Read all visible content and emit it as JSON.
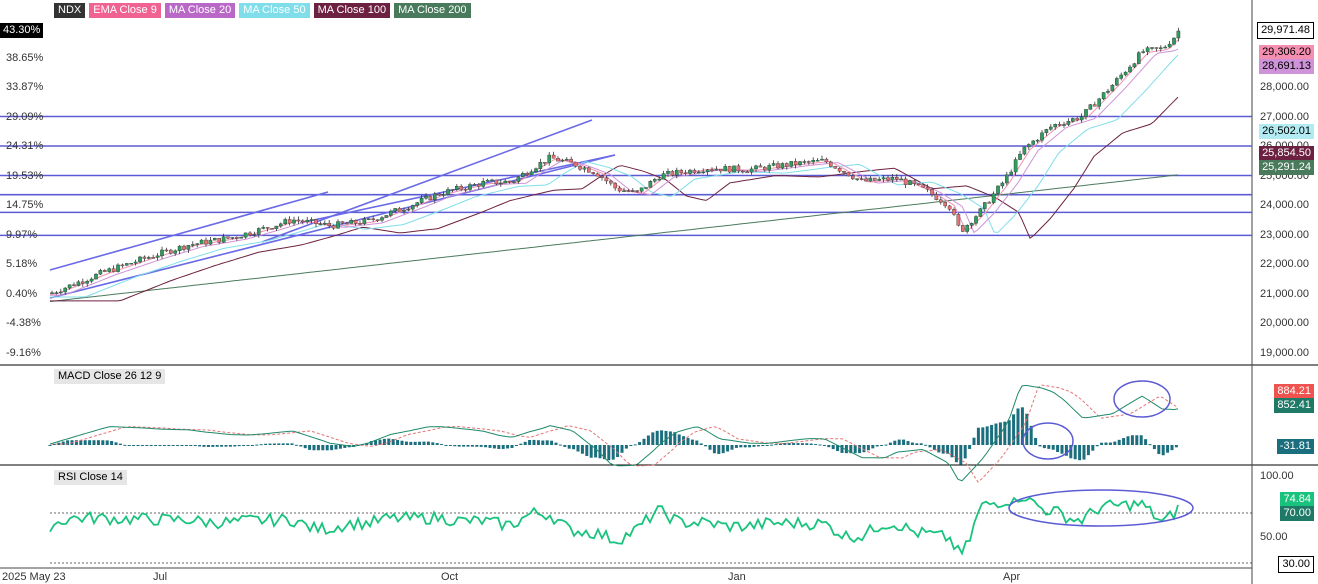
{
  "legend": [
    {
      "label": "NDX",
      "color": "#333333"
    },
    {
      "label": "EMA  Close 9",
      "color": "#f06292"
    },
    {
      "label": "MA  Close 20",
      "color": "#ba68c8"
    },
    {
      "label": "MA  Close 50",
      "color": "#80deea"
    },
    {
      "label": "MA  Close 100",
      "color": "#6d2140"
    },
    {
      "label": "MA  Close 200",
      "color": "#4a7a5c"
    }
  ],
  "colors": {
    "up": "#2e9e5e",
    "down": "#e57373",
    "hline": "#5b5bd6",
    "channel": "#6a6ae8",
    "rsi": "#19c37d",
    "macd": "#1e8a6a",
    "signal": "#e57373",
    "hist": "#1a6e7e"
  },
  "price_left_axis": [
    "43.30%",
    "38.65%",
    "33.87%",
    "29.09%",
    "24.31%",
    "19.53%",
    "14.75%",
    "9.97%",
    "5.18%",
    "0.40%",
    "-4.38%",
    "-9.16%"
  ],
  "price_right_axis": [
    "28,000.00",
    "27,000.00",
    "26,000.00",
    "25,000.00",
    "24,000.00",
    "23,000.00",
    "22,000.00",
    "21,000.00",
    "20,000.00",
    "19,000.00"
  ],
  "x_axis_labels": [
    "2025 May 23",
    "Jul",
    "Oct",
    "Jan",
    "Apr"
  ],
  "price_badges": [
    {
      "text": "29,971.48",
      "bg": "#ffffff",
      "fg": "#000000",
      "border": "#000000"
    },
    {
      "text": "29,306.20",
      "bg": "#f48fb1",
      "fg": "#000000"
    },
    {
      "text": "28,691.13",
      "bg": "#ce93d8",
      "fg": "#000000"
    },
    {
      "text": "26,502.01",
      "bg": "#b2ebf2",
      "fg": "#000000"
    },
    {
      "text": "25,854.50",
      "bg": "#6d2140",
      "fg": "#ffffff"
    },
    {
      "text": "25,291.24",
      "bg": "#4a7a5c",
      "fg": "#ffffff"
    }
  ],
  "left_badge": "43.30%",
  "macd": {
    "label": "MACD  Close 26 12 9",
    "badges": [
      {
        "text": "884.21",
        "bg": "#ef5350",
        "fg": "#ffffff"
      },
      {
        "text": "852.41",
        "bg": "#1e7a66",
        "fg": "#ffffff"
      },
      {
        "text": "-31.81",
        "bg": "#1a6e7e",
        "fg": "#ffffff"
      }
    ]
  },
  "rsi": {
    "label": "RSI  Close 14",
    "axis": [
      "100.00",
      "50.00"
    ],
    "badges": [
      {
        "text": "74.84",
        "bg": "#19c37d",
        "fg": "#ffffff"
      },
      {
        "text": "70.00",
        "bg": "#1e7a66",
        "fg": "#ffffff"
      },
      {
        "text": "30.00",
        "bg": "#ffffff",
        "fg": "#000000",
        "border": "#000000"
      }
    ]
  },
  "chart_data": {
    "type": "line",
    "title": "NDX",
    "ylim": [
      18600,
      30500
    ],
    "horizontal_levels": [
      27000,
      26000,
      25000,
      24350,
      23750,
      22970
    ],
    "x_dates": [
      "2025-05-23",
      "2025-07-01",
      "2025-10-01",
      "2026-01-01",
      "2026-04-01"
    ],
    "close_series": [
      {
        "date": "2025-05-23",
        "value": 21000
      },
      {
        "date": "2025-06-10",
        "value": 21700
      },
      {
        "date": "2025-06-25",
        "value": 22200
      },
      {
        "date": "2025-07-10",
        "value": 22650
      },
      {
        "date": "2025-07-25",
        "value": 22900
      },
      {
        "date": "2025-08-05",
        "value": 23200
      },
      {
        "date": "2025-08-15",
        "value": 23500
      },
      {
        "date": "2025-08-28",
        "value": 23300
      },
      {
        "date": "2025-09-10",
        "value": 23450
      },
      {
        "date": "2025-09-25",
        "value": 24000
      },
      {
        "date": "2025-10-05",
        "value": 24400
      },
      {
        "date": "2025-10-20",
        "value": 24750
      },
      {
        "date": "2025-10-30",
        "value": 24800
      },
      {
        "date": "2025-11-05",
        "value": 25200
      },
      {
        "date": "2025-11-12",
        "value": 25600
      },
      {
        "date": "2025-11-20",
        "value": 25400
      },
      {
        "date": "2025-11-28",
        "value": 25100
      },
      {
        "date": "2025-12-05",
        "value": 24550
      },
      {
        "date": "2025-12-12",
        "value": 24400
      },
      {
        "date": "2025-12-20",
        "value": 25000
      },
      {
        "date": "2026-01-05",
        "value": 25250
      },
      {
        "date": "2026-01-20",
        "value": 25200
      },
      {
        "date": "2026-02-05",
        "value": 25400
      },
      {
        "date": "2026-02-15",
        "value": 25500
      },
      {
        "date": "2026-02-28",
        "value": 24800
      },
      {
        "date": "2026-03-12",
        "value": 24900
      },
      {
        "date": "2026-03-22",
        "value": 24500
      },
      {
        "date": "2026-03-30",
        "value": 24000
      },
      {
        "date": "2026-04-03",
        "value": 23100
      },
      {
        "date": "2026-04-10",
        "value": 23800
      },
      {
        "date": "2026-04-18",
        "value": 24800
      },
      {
        "date": "2026-04-25",
        "value": 25900
      },
      {
        "date": "2026-05-05",
        "value": 26700
      },
      {
        "date": "2026-05-15",
        "value": 27000
      },
      {
        "date": "2026-05-25",
        "value": 28000
      },
      {
        "date": "2026-06-05",
        "value": 29200
      },
      {
        "date": "2026-06-12",
        "value": 29300
      },
      {
        "date": "2026-06-16",
        "value": 29700
      },
      {
        "date": "2026-06-18",
        "value": 29971.48
      }
    ],
    "last_values": {
      "close": 29971.48,
      "ema9": 29306.2,
      "ma20": 28691.13,
      "ma50": 26502.01,
      "ma100": 25854.5,
      "ma200": 25291.24
    }
  }
}
